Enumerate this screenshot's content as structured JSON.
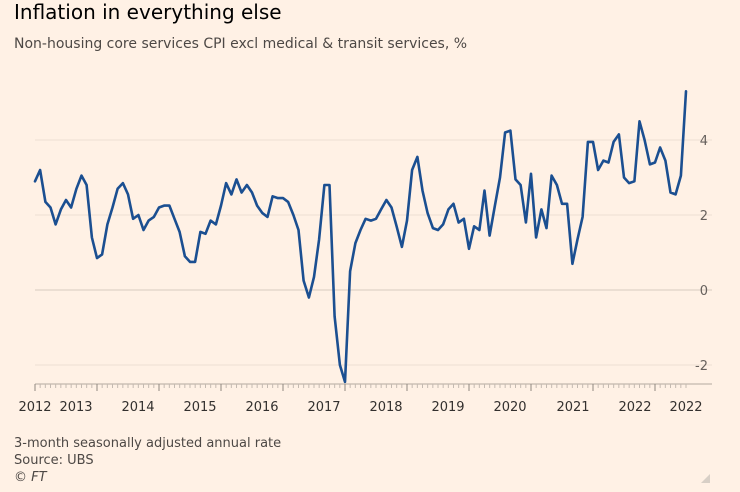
{
  "chart_data": {
    "type": "line",
    "title": "Inflation in everything else",
    "subtitle": "Non-housing core services CPI excl medical & transit services, %",
    "xlabel": "",
    "ylabel": "",
    "x_ticks": [
      "2012",
      "2013",
      "2014",
      "2015",
      "2016",
      "2017",
      "2018",
      "2019",
      "2020",
      "2021",
      "2022",
      "2022"
    ],
    "y_ticks": [
      "4",
      "2",
      "0",
      "-2"
    ],
    "y_tick_values": [
      4,
      2,
      0,
      -2
    ],
    "xlim": [
      2012.0,
      2022.5
    ],
    "ylim": [
      -2.5,
      5.5
    ],
    "grid": true,
    "series": [
      {
        "color": "#1b4f91",
        "x": [
          2012.0,
          2012.083,
          2012.167,
          2012.25,
          2012.333,
          2012.417,
          2012.5,
          2012.583,
          2012.667,
          2012.75,
          2012.833,
          2012.917,
          2013.0,
          2013.083,
          2013.167,
          2013.25,
          2013.333,
          2013.417,
          2013.5,
          2013.583,
          2013.667,
          2013.75,
          2013.833,
          2013.917,
          2014.0,
          2014.083,
          2014.167,
          2014.25,
          2014.333,
          2014.417,
          2014.5,
          2014.583,
          2014.667,
          2014.75,
          2014.833,
          2014.917,
          2015.0,
          2015.083,
          2015.167,
          2015.25,
          2015.333,
          2015.417,
          2015.5,
          2015.583,
          2015.667,
          2015.75,
          2015.833,
          2015.917,
          2016.0,
          2016.083,
          2016.167,
          2016.25,
          2016.333,
          2016.417,
          2016.5,
          2016.583,
          2016.667,
          2016.75,
          2016.833,
          2016.917,
          2017.0,
          2017.083,
          2017.167,
          2017.25,
          2017.333,
          2017.417,
          2017.5,
          2017.583,
          2017.667,
          2017.75,
          2017.833,
          2017.917,
          2018.0,
          2018.083,
          2018.167,
          2018.25,
          2018.333,
          2018.417,
          2018.5,
          2018.583,
          2018.667,
          2018.75,
          2018.833,
          2018.917,
          2019.0,
          2019.083,
          2019.167,
          2019.25,
          2019.333,
          2019.417,
          2019.5,
          2019.583,
          2019.667,
          2019.75,
          2019.833,
          2019.917,
          2020.0,
          2020.083,
          2020.167,
          2020.25,
          2020.333,
          2020.417,
          2020.5,
          2020.583,
          2020.667,
          2020.75,
          2020.833,
          2020.917,
          2021.0,
          2021.083,
          2021.167,
          2021.25,
          2021.333,
          2021.417,
          2021.5,
          2021.583,
          2021.667,
          2021.75,
          2021.833,
          2021.917,
          2022.0,
          2022.083,
          2022.167,
          2022.25,
          2022.333,
          2022.417,
          2022.5
        ],
        "values": [
          2.9,
          3.2,
          2.35,
          2.2,
          1.75,
          2.15,
          2.4,
          2.2,
          2.7,
          3.05,
          2.8,
          1.4,
          0.85,
          0.95,
          1.75,
          2.2,
          2.7,
          2.85,
          2.55,
          1.9,
          2.0,
          1.6,
          1.85,
          1.95,
          2.2,
          2.25,
          2.25,
          1.9,
          1.55,
          0.9,
          0.75,
          0.75,
          1.55,
          1.5,
          1.85,
          1.75,
          2.25,
          2.85,
          2.55,
          2.95,
          2.6,
          2.8,
          2.6,
          2.25,
          2.05,
          1.95,
          2.5,
          2.45,
          2.45,
          2.35,
          2.0,
          1.6,
          0.25,
          -0.2,
          0.35,
          1.35,
          2.8,
          2.8,
          -0.7,
          -2.0,
          -2.45,
          0.5,
          1.25,
          1.6,
          1.9,
          1.85,
          1.9,
          2.15,
          2.4,
          2.2,
          1.7,
          1.15,
          1.85,
          3.2,
          3.55,
          2.65,
          2.05,
          1.65,
          1.6,
          1.75,
          2.15,
          2.3,
          1.8,
          1.9,
          1.1,
          1.7,
          1.6,
          2.65,
          1.45,
          2.25,
          3.0,
          4.2,
          4.25,
          2.95,
          2.8,
          1.8,
          3.1,
          1.4,
          2.15,
          1.65,
          3.05,
          2.8,
          2.3,
          2.3,
          0.7,
          1.35,
          1.95,
          3.95,
          3.95,
          3.2,
          3.45,
          3.4,
          3.95,
          4.15,
          3.0,
          2.85,
          2.9,
          4.5,
          4.0,
          3.35,
          3.4,
          3.8,
          3.45,
          2.6,
          2.55,
          3.05,
          5.3
        ]
      }
    ]
  },
  "footer": {
    "note": "3-month seasonally adjusted annual rate",
    "source": "Source: UBS",
    "credit": "© FT"
  }
}
